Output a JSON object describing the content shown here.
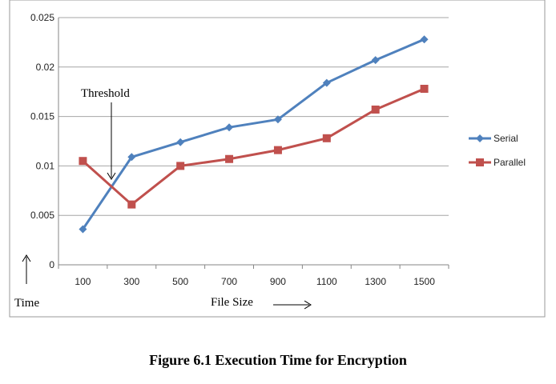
{
  "chart_data": {
    "type": "line",
    "categories": [
      "100",
      "300",
      "500",
      "700",
      "900",
      "1100",
      "1300",
      "1500"
    ],
    "series": [
      {
        "name": "Serial",
        "color": "#4f81bd",
        "marker": "diamond",
        "values": [
          0.0036,
          0.0109,
          0.0124,
          0.0139,
          0.0147,
          0.0184,
          0.0207,
          0.0228
        ]
      },
      {
        "name": "Parallel",
        "color": "#c0504d",
        "marker": "square",
        "values": [
          0.0105,
          0.0061,
          0.01,
          0.0107,
          0.0116,
          0.0128,
          0.0157,
          0.0178
        ]
      }
    ],
    "yticks": [
      "0",
      "0.005",
      "0.01",
      "0.015",
      "0.02",
      "0.025"
    ],
    "ylim": [
      0,
      0.025
    ],
    "grid": true,
    "legend_position": "right",
    "annotation": "Threshold",
    "ylabel": "Time",
    "xlabel": "File Size"
  },
  "caption": "Figure 6.1   Execution Time for Encryption"
}
